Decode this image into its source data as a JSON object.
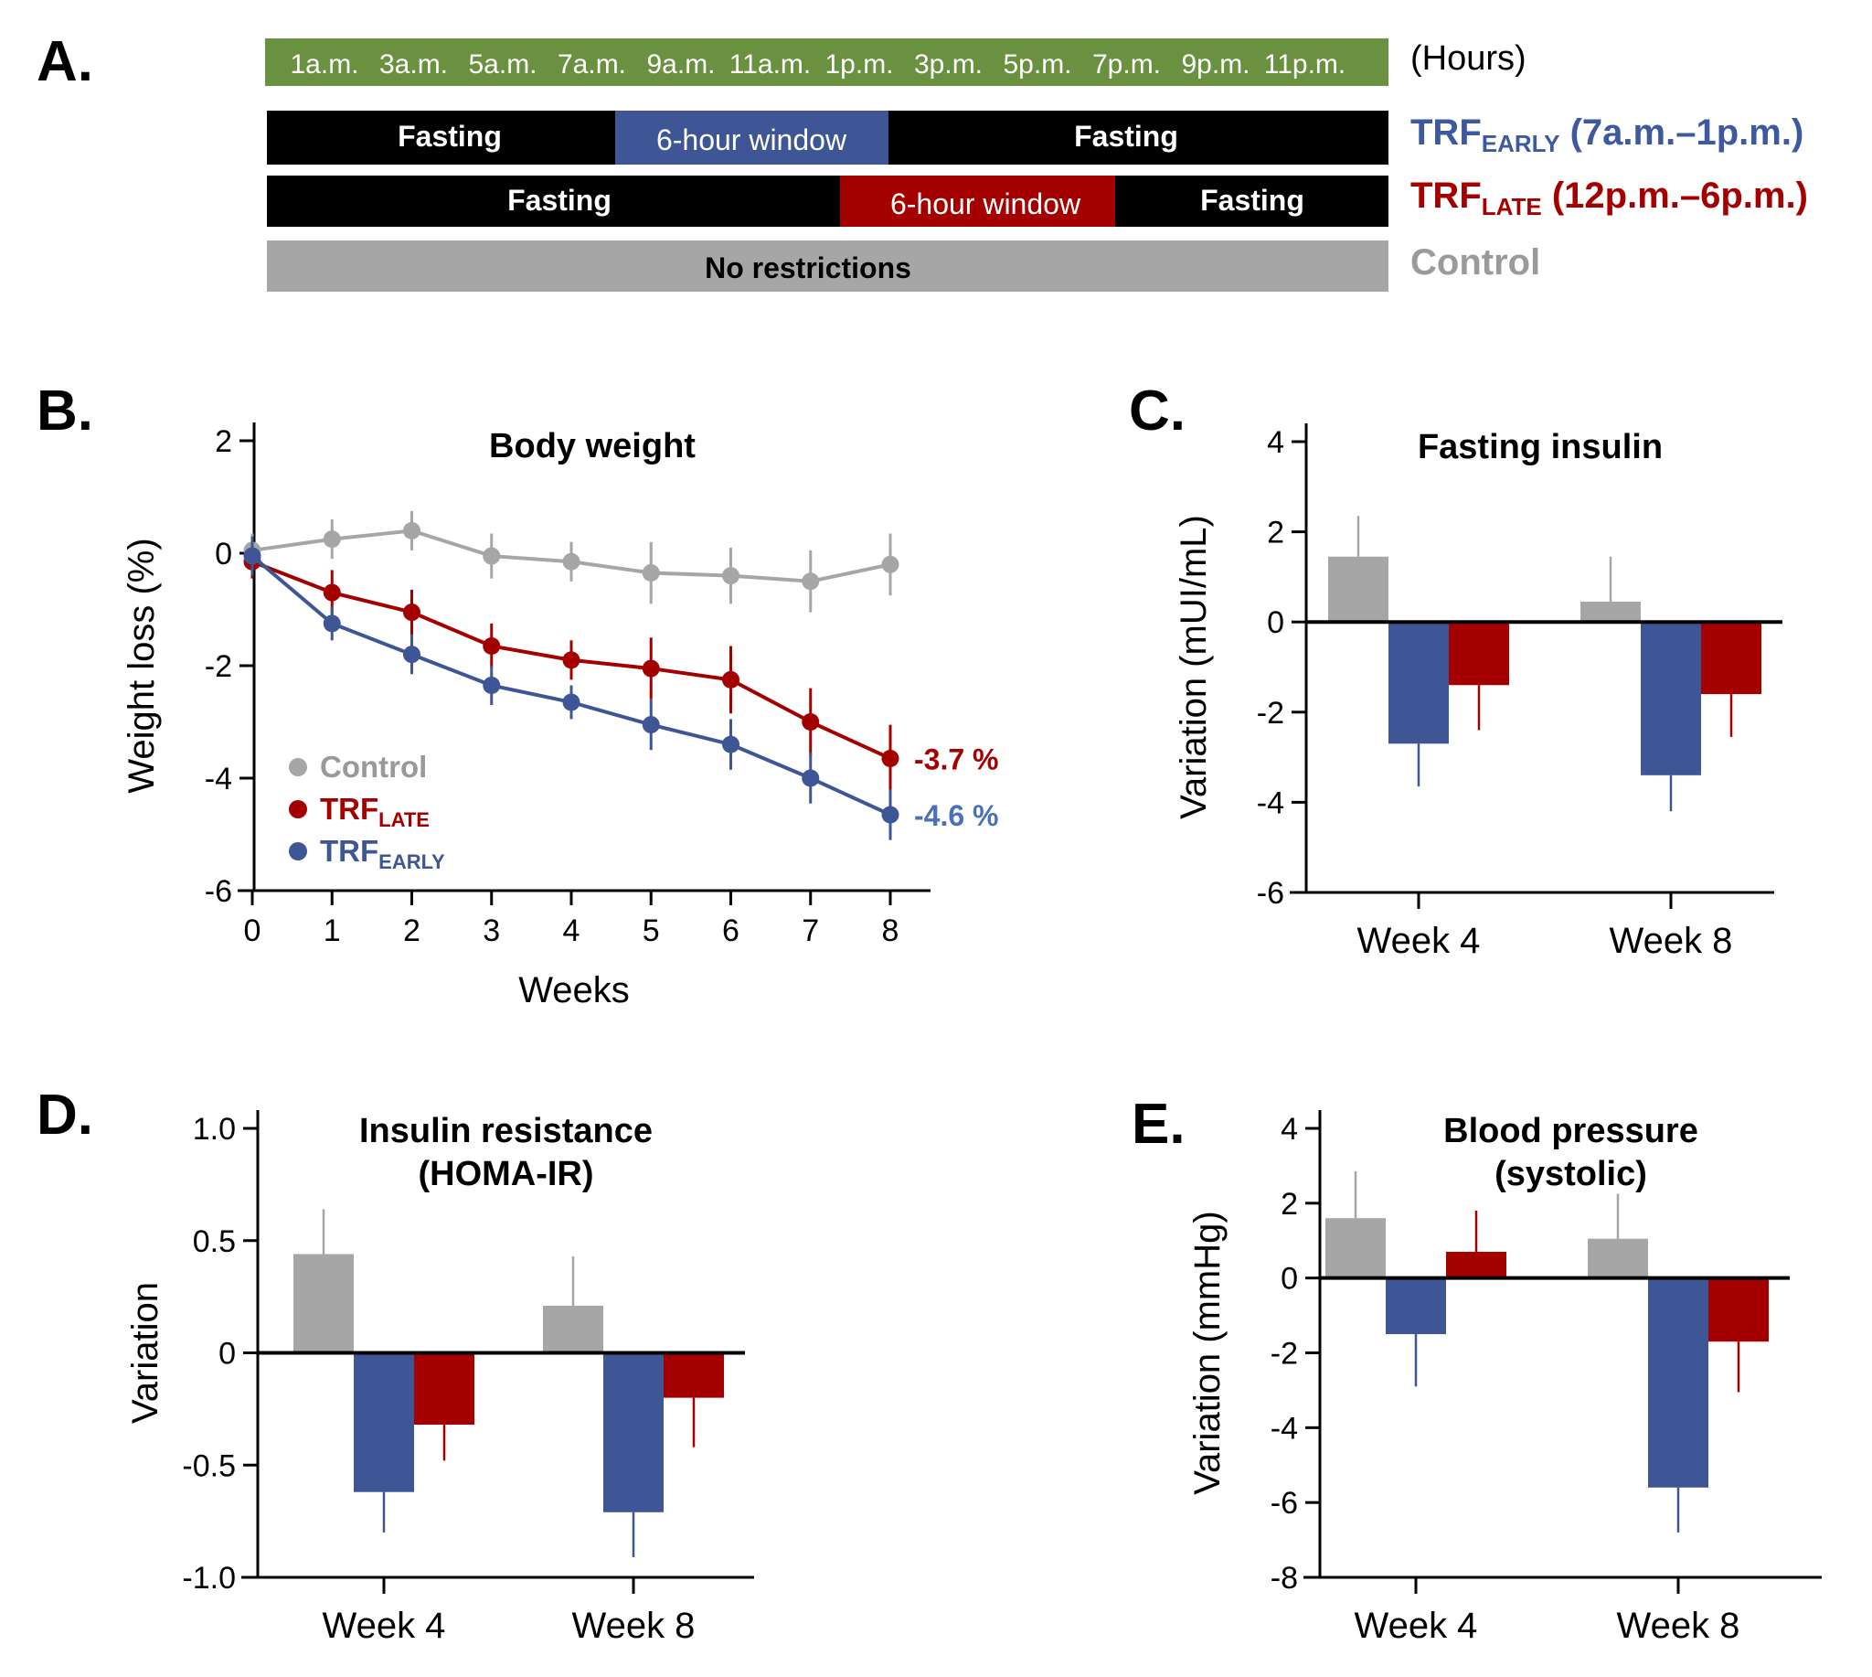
{
  "colors": {
    "control": "#a6a6a6",
    "early": "#3f5696",
    "late": "#a50000",
    "hours_bar": "#6a9140",
    "early_label": "#4a72b8"
  },
  "panel_a": {
    "label": "A.",
    "hours": [
      "1a.m.",
      "3a.m.",
      "5a.m.",
      "7a.m.",
      "9a.m.",
      "11a.m.",
      "1p.m.",
      "3p.m.",
      "5p.m.",
      "7p.m.",
      "9p.m.",
      "11p.m."
    ],
    "hours_unit": "(Hours)",
    "rows": [
      {
        "segments": [
          "Fasting",
          "6-hour window",
          "Fasting"
        ],
        "label_main": "TRF",
        "label_sub": "EARLY",
        "label_rest": " (7a.m.–1p.m.)"
      },
      {
        "segments": [
          "Fasting",
          "6-hour window",
          "Fasting"
        ],
        "label_main": "TRF",
        "label_sub": "LATE",
        "label_rest": " (12p.m.–6p.m.)"
      },
      {
        "segments": [
          "No restrictions"
        ],
        "label_main": "Control"
      }
    ]
  },
  "chart_data": [
    {
      "panel": "B.",
      "type": "line",
      "title": "Body weight",
      "xlabel": "Weeks",
      "ylabel": "Weight loss (%)",
      "x": [
        0,
        1,
        2,
        3,
        4,
        5,
        6,
        7,
        8
      ],
      "xticks": [
        "0",
        "1",
        "2",
        "3",
        "4",
        "5",
        "6",
        "7",
        "8"
      ],
      "ylim": [
        -6,
        2
      ],
      "yticks": [
        "2",
        "0",
        "-2",
        "-4",
        "-6"
      ],
      "legend_position": "bottom-left",
      "series": [
        {
          "key": "control",
          "name": "Control",
          "name_sub": "",
          "values": [
            0.05,
            0.25,
            0.4,
            -0.05,
            -0.15,
            -0.35,
            -0.4,
            -0.5,
            -0.2
          ],
          "errors": [
            0.3,
            0.35,
            0.35,
            0.4,
            0.35,
            0.55,
            0.5,
            0.55,
            0.55
          ]
        },
        {
          "key": "late",
          "name": "TRF",
          "name_sub": "LATE",
          "values": [
            -0.15,
            -0.7,
            -1.05,
            -1.65,
            -1.9,
            -2.05,
            -2.25,
            -3.0,
            -3.65
          ],
          "errors": [
            0.3,
            0.4,
            0.4,
            0.4,
            0.35,
            0.55,
            0.6,
            0.6,
            0.6
          ],
          "end_label": "-3.7 %"
        },
        {
          "key": "early",
          "name": "TRF",
          "name_sub": "EARLY",
          "values": [
            -0.05,
            -1.25,
            -1.8,
            -2.35,
            -2.65,
            -3.05,
            -3.4,
            -4.0,
            -4.65
          ],
          "errors": [
            0.35,
            0.3,
            0.35,
            0.35,
            0.3,
            0.45,
            0.45,
            0.45,
            0.45
          ],
          "end_label": "-4.6 %"
        }
      ]
    },
    {
      "panel": "C.",
      "type": "bar",
      "title": "Fasting insulin",
      "ylabel": "Variation (mUI/mL)",
      "categories": [
        "Week 4",
        "Week 8"
      ],
      "ylim": [
        -6,
        4
      ],
      "yticks": [
        "4",
        "2",
        "0",
        "-2",
        "-4",
        "-6"
      ],
      "series": [
        {
          "key": "control",
          "values": [
            1.45,
            0.45
          ],
          "errors": [
            0.9,
            1.0
          ]
        },
        {
          "key": "early",
          "values": [
            -2.7,
            -3.4
          ],
          "errors": [
            0.95,
            0.8
          ]
        },
        {
          "key": "late",
          "values": [
            -1.4,
            -1.6
          ],
          "errors": [
            1.0,
            0.95
          ]
        }
      ]
    },
    {
      "panel": "D.",
      "type": "bar",
      "title": "Insulin resistance",
      "title2": "(HOMA-IR)",
      "ylabel": "Variation",
      "categories": [
        "Week 4",
        "Week 8"
      ],
      "ylim": [
        -1.0,
        1.0
      ],
      "yticks": [
        "1.0",
        "0.5",
        "0",
        "-0.5",
        "-1.0"
      ],
      "series": [
        {
          "key": "control",
          "values": [
            0.44,
            0.21
          ],
          "errors": [
            0.2,
            0.22
          ]
        },
        {
          "key": "early",
          "values": [
            -0.62,
            -0.71
          ],
          "errors": [
            0.18,
            0.2
          ]
        },
        {
          "key": "late",
          "values": [
            -0.32,
            -0.2
          ],
          "errors": [
            0.16,
            0.22
          ]
        }
      ]
    },
    {
      "panel": "E.",
      "type": "bar",
      "title": "Blood pressure",
      "title2": "(systolic)",
      "ylabel": "Variation (mmHg)",
      "categories": [
        "Week 4",
        "Week 8"
      ],
      "ylim": [
        -8,
        4
      ],
      "yticks": [
        "4",
        "2",
        "0",
        "-2",
        "-4",
        "-6",
        "-8"
      ],
      "series": [
        {
          "key": "control",
          "values": [
            1.6,
            1.05
          ],
          "errors": [
            1.25,
            1.2
          ]
        },
        {
          "key": "early",
          "values": [
            -1.5,
            -5.6
          ],
          "errors": [
            1.4,
            1.2
          ]
        },
        {
          "key": "late",
          "values": [
            0.7,
            -1.7
          ],
          "errors": [
            1.1,
            1.35
          ]
        }
      ]
    }
  ]
}
